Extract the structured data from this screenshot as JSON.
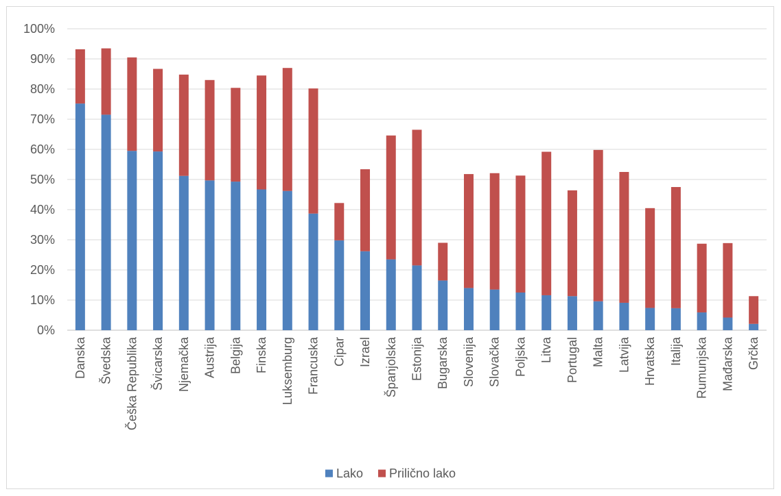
{
  "chart_data": {
    "type": "bar",
    "stacked": true,
    "title": "",
    "xlabel": "",
    "ylabel": "",
    "ylim": [
      0,
      100
    ],
    "ytick_values": [
      0,
      10,
      20,
      30,
      40,
      50,
      60,
      70,
      80,
      90,
      100
    ],
    "ytick_labels": [
      "0%",
      "10%",
      "20%",
      "30%",
      "40%",
      "50%",
      "60%",
      "70%",
      "80%",
      "90%",
      "100%"
    ],
    "grid": true,
    "legend_position": "bottom",
    "categories": [
      "Danska",
      "Švedska",
      "Češka Republika",
      "Švicarska",
      "Njemačka",
      "Austrija",
      "Belgija",
      "Finska",
      "Luksemburg",
      "Francuska",
      "Cipar",
      "Izrael",
      "Španjolska",
      "Estonija",
      "Bugarska",
      "Slovenija",
      "Slovačka",
      "Poljska",
      "Litva",
      "Portugal",
      "Malta",
      "Latvija",
      "Hrvatska",
      "Italija",
      "Rumunjska",
      "Mađarska",
      "Grčka"
    ],
    "series": [
      {
        "name": "Lako",
        "color": "#4f81bd",
        "values": [
          75.2,
          71.5,
          59.5,
          59.3,
          51.2,
          49.7,
          49.3,
          46.7,
          46.2,
          38.7,
          29.8,
          26.2,
          23.5,
          21.5,
          16.5,
          14.0,
          13.5,
          12.5,
          11.6,
          11.3,
          9.6,
          9.1,
          7.4,
          7.3,
          5.9,
          4.2,
          2.1
        ]
      },
      {
        "name": "Prilično lako",
        "color": "#c0504d",
        "values": [
          18.0,
          22.0,
          31.0,
          27.4,
          33.6,
          33.3,
          31.1,
          37.8,
          40.8,
          41.5,
          12.4,
          27.2,
          41.1,
          45.0,
          12.5,
          37.8,
          38.6,
          38.8,
          47.6,
          35.1,
          50.2,
          43.4,
          33.1,
          40.2,
          22.8,
          24.7,
          9.2
        ]
      }
    ]
  }
}
